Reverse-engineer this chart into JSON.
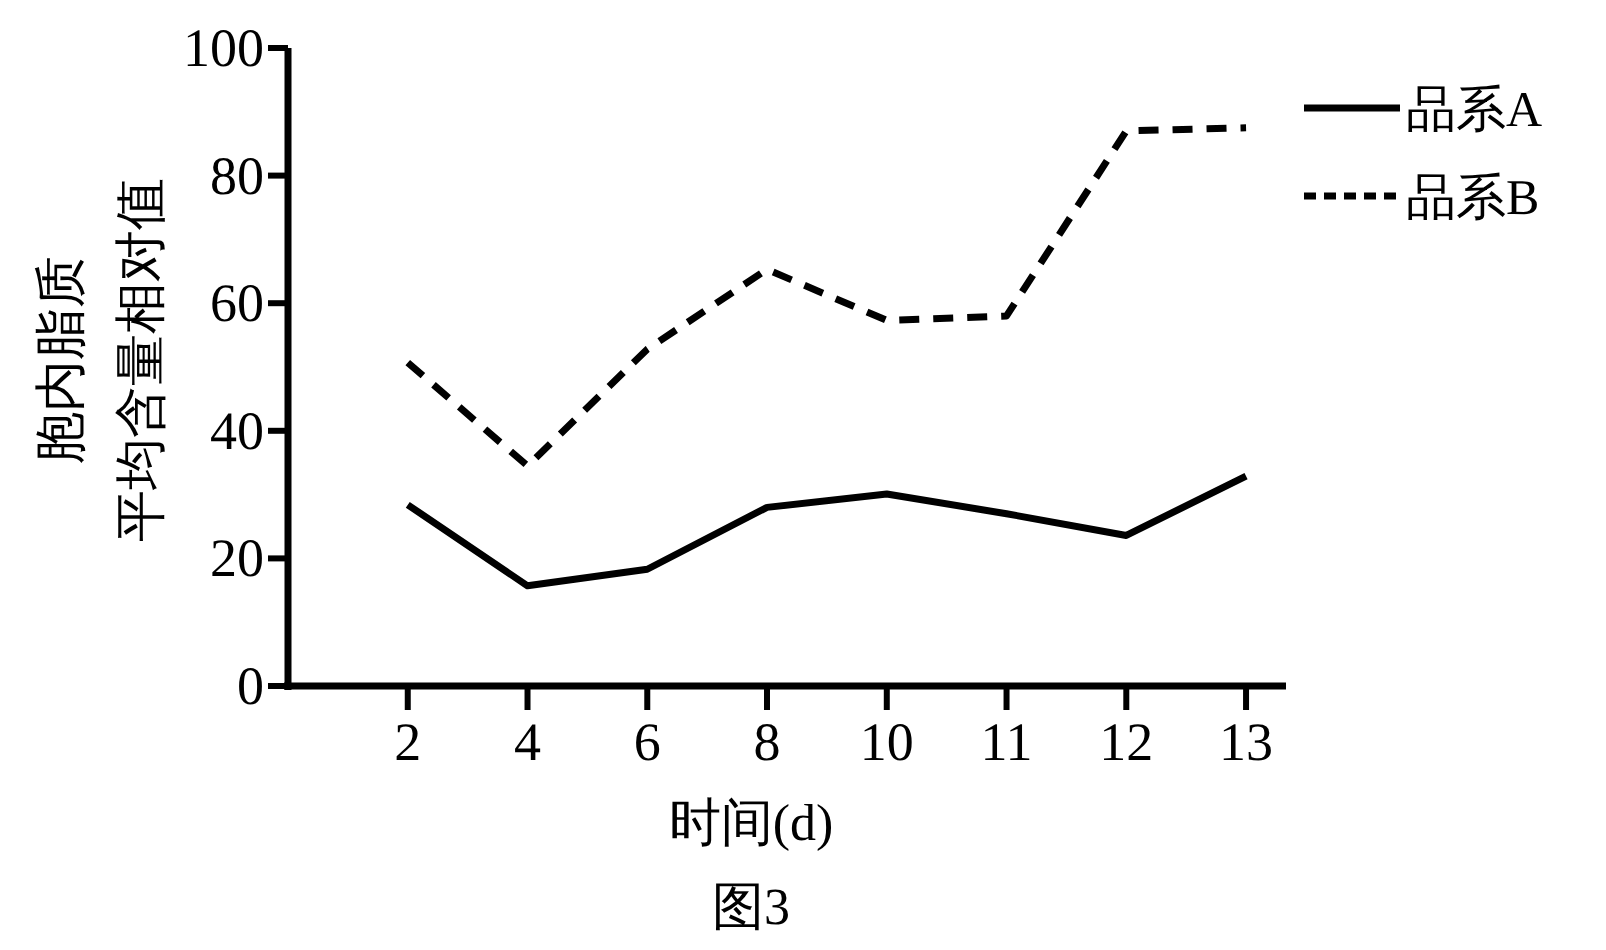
{
  "chart_data": {
    "type": "line",
    "title": "图3",
    "xlabel": "时间(d)",
    "ylabel": "胞内脂质平均含量相对值",
    "categories": [
      "2",
      "4",
      "6",
      "8",
      "10",
      "11",
      "12",
      "13"
    ],
    "series": [
      {
        "name": "品系A",
        "color": "#000000",
        "line_style": "solid",
        "values": [
          28.4,
          15.7,
          18.3,
          28.0,
          30.1,
          27.0,
          23.6,
          32.9
        ]
      },
      {
        "name": "品系B",
        "color": "#000000",
        "line_style": "dashed",
        "values": [
          50.7,
          34.5,
          52.8,
          65.3,
          57.3,
          58.0,
          87.0,
          87.5
        ]
      }
    ],
    "ylim": [
      0,
      100
    ],
    "yticks": [
      0,
      20,
      40,
      60,
      80,
      100
    ],
    "grid": false,
    "legend": "top right",
    "marker": "none"
  }
}
